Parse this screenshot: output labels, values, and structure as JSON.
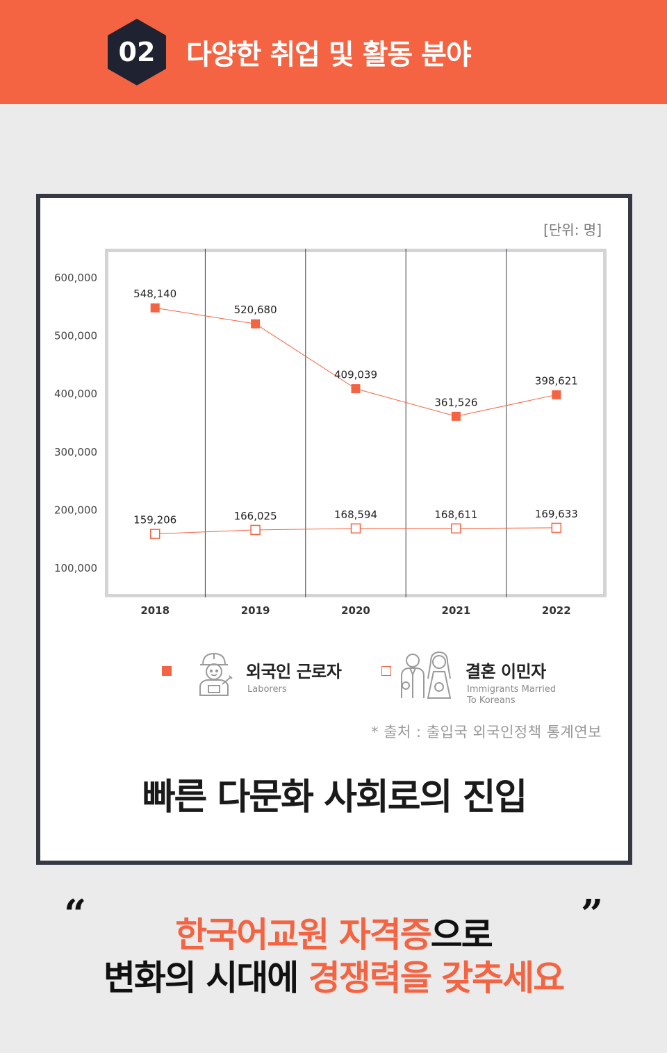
{
  "banner": {
    "number": "02",
    "title": "다양한 취업 및 활동 분야"
  },
  "card": {
    "unit_label": "[단위: 명]",
    "source": "* 출처 : 출입국 외국인정책 통계연보",
    "headline": "빠른 다문화 사회로의 진입"
  },
  "legend": {
    "laborers_title": "외국인 근로자",
    "laborers_sub": "Laborers",
    "married_title": "결혼 이민자",
    "married_sub_1": "Immigrants Married",
    "married_sub_2": "To Koreans"
  },
  "slogan": {
    "line1_orange": "한국어교원 자격증",
    "line1_black": "으로",
    "line2_black": "변화의 시대에 ",
    "line2_orange": "경쟁력을 갖추세요"
  },
  "colors": {
    "accent": "#f46442",
    "frame": "#363944",
    "grid": "#d4d4d6"
  },
  "chart_data": {
    "type": "line",
    "categories": [
      "2018",
      "2019",
      "2020",
      "2021",
      "2022"
    ],
    "y_ticks": [
      "600,000",
      "500,000",
      "400,000",
      "300,000",
      "200,000",
      "100,000"
    ],
    "ylim": [
      50000,
      650000
    ],
    "series": [
      {
        "name": "외국인 근로자",
        "values": [
          548140,
          520680,
          409039,
          361526,
          398621
        ],
        "labels": [
          "548,140",
          "520,680",
          "409,039",
          "361,526",
          "398,621"
        ],
        "marker": "filled-square"
      },
      {
        "name": "결혼 이민자",
        "values": [
          159206,
          166025,
          168594,
          168611,
          169633
        ],
        "labels": [
          "159,206",
          "166,025",
          "168,594",
          "168,611",
          "169,633"
        ],
        "marker": "hollow-square"
      }
    ]
  }
}
